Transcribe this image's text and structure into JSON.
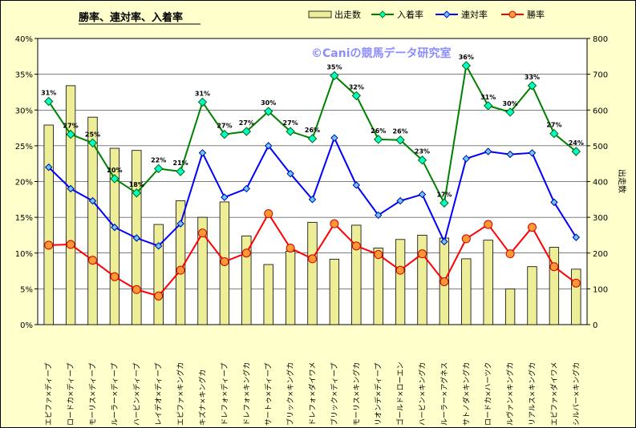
{
  "chart_data": {
    "type": "bar+line",
    "title": "勝率、連対率、入着率",
    "watermark": "©Caniの競馬データ研究室",
    "categories": [
      "エピファ×ディープ",
      "ロードカ×ディープ",
      "モーリス×ディープ",
      "ルーラー×ディープ",
      "ハービン×ディープ",
      "レイデオ×ディープ",
      "エピファ×キングカ",
      "キズナ×キングカ",
      "ドレフォ×ディープ",
      "ドレフォ×キングカ",
      "サートゥ×ディープ",
      "ブリック×キングカ",
      "ドレフォ×ダイワメ",
      "ブリック×ディープ",
      "モーリス×キングカ",
      "リオンデ×ディープ",
      "ゴールド×ローエン",
      "ハービン×キングカ",
      "ルーラー×アグネス",
      "サトノダ×キングカ",
      "ロードカ×ハーツク",
      "ルヴァン×キングカ",
      "リアルス×キングカ",
      "エピファ×ダイワメ",
      "シルバー×キングカ"
    ],
    "y_left": {
      "min": 0,
      "max": 40,
      "step": 5,
      "unit": "%"
    },
    "y_right": {
      "min": 0,
      "max": 800,
      "step": 100,
      "label": "出走数"
    },
    "legend": [
      "出走数",
      "入着率",
      "連対率",
      "勝率"
    ],
    "legend_position": "top",
    "series": [
      {
        "name": "出走数",
        "type": "bar",
        "axis": "right",
        "color": "#eeee99",
        "values": [
          558,
          668,
          580,
          493,
          487,
          280,
          346,
          300,
          343,
          248,
          168,
          205,
          286,
          183,
          278,
          214,
          238,
          250,
          242,
          184,
          236,
          100,
          162,
          216,
          155
        ]
      },
      {
        "name": "入着率",
        "type": "line",
        "axis": "left",
        "color": "#008000",
        "values": [
          31.2,
          26.6,
          25.4,
          20.4,
          18.4,
          21.8,
          21.4,
          31.1,
          26.6,
          27.0,
          29.8,
          27.0,
          26.0,
          34.8,
          32.0,
          25.9,
          25.8,
          23.0,
          17.0,
          36.2,
          30.6,
          29.7,
          33.4,
          26.7,
          24.2
        ]
      },
      {
        "name": "連対率",
        "type": "line",
        "axis": "left",
        "color": "#0000ff",
        "values": [
          22.0,
          19.0,
          17.3,
          13.6,
          12.1,
          11.0,
          14.1,
          24.0,
          17.8,
          19.0,
          25.0,
          21.1,
          17.5,
          26.1,
          19.5,
          15.3,
          17.3,
          18.2,
          11.6,
          23.2,
          24.2,
          23.8,
          24.0,
          17.1,
          12.2
        ]
      },
      {
        "name": "勝率",
        "type": "line",
        "axis": "left",
        "color": "#ff0000",
        "values": [
          11.1,
          11.2,
          9.0,
          6.7,
          4.9,
          4.0,
          7.6,
          12.8,
          8.8,
          10.0,
          15.5,
          10.7,
          9.2,
          14.1,
          11.0,
          9.8,
          7.6,
          9.9,
          6.0,
          12.0,
          14.0,
          9.9,
          13.6,
          8.1,
          5.8
        ]
      }
    ],
    "data_labels": {
      "series": "入着率",
      "values": [
        "31%",
        "27%",
        "25%",
        "20%",
        "18%",
        "22%",
        "21%",
        "31%",
        "27%",
        "27%",
        "30%",
        "27%",
        "26%",
        "35%",
        "32%",
        "26%",
        "26%",
        "23%",
        "17%",
        "36%",
        "31%",
        "30%",
        "33%",
        "27%",
        "24%"
      ]
    }
  }
}
